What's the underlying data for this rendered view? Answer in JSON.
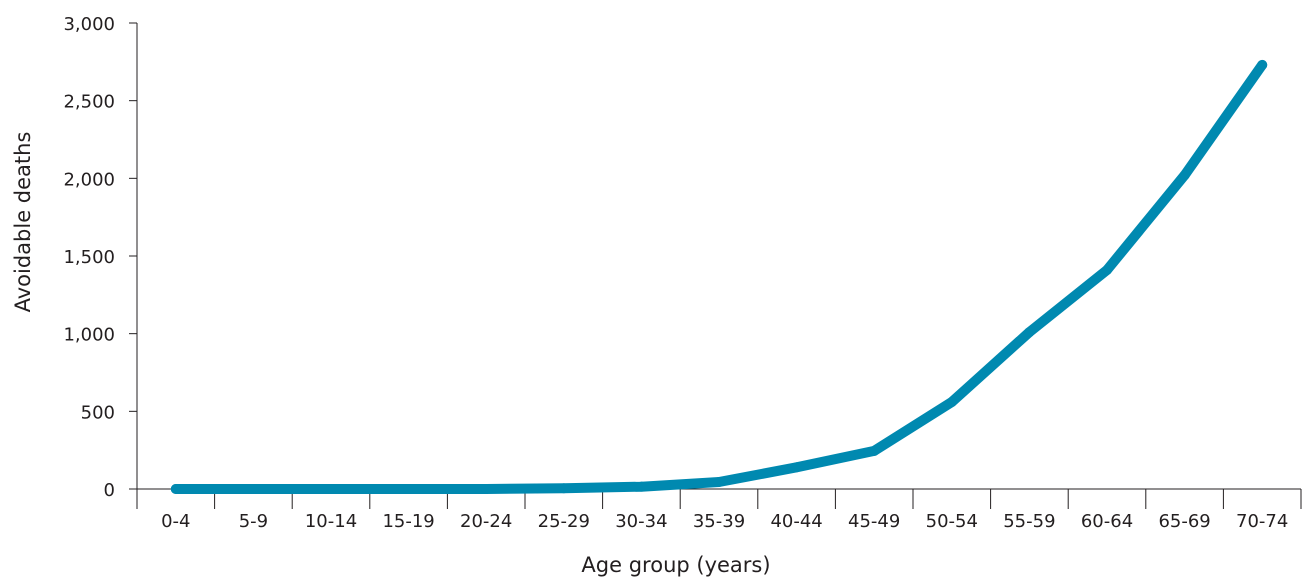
{
  "chart_data": {
    "type": "line",
    "title": "",
    "xlabel": "Age group (years)",
    "ylabel": "Avoidable deaths",
    "categories": [
      "0-4",
      "5-9",
      "10-14",
      "15-19",
      "20-24",
      "25-29",
      "30-34",
      "35-39",
      "40-44",
      "45-49",
      "50-54",
      "55-59",
      "60-64",
      "65-69",
      "70-74"
    ],
    "y_tick_labels": [
      "0",
      "500",
      "1,000",
      "1,500",
      "2,000",
      "2,500",
      "3,000"
    ],
    "y_ticks": [
      0,
      500,
      1000,
      1500,
      2000,
      2500,
      3000
    ],
    "ylim": [
      0,
      3000
    ],
    "grid": false,
    "series": [
      {
        "values": [
          0,
          0,
          0,
          0,
          0,
          5,
          15,
          45,
          140,
          245,
          560,
          1010,
          1410,
          2020,
          2730
        ],
        "color": "#0089b0"
      }
    ]
  }
}
